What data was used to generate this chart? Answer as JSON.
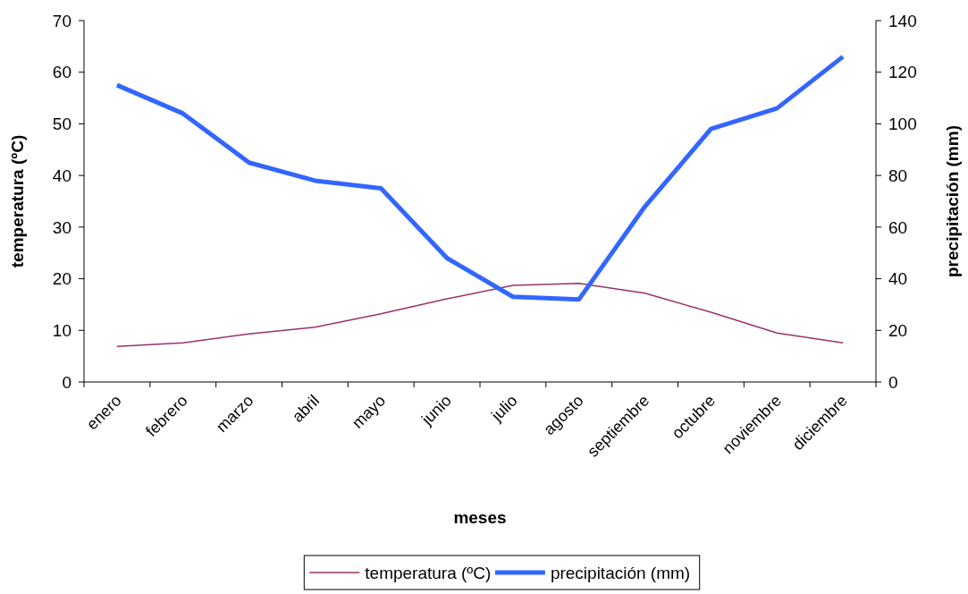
{
  "chart_data": {
    "type": "line",
    "xlabel": "meses",
    "ylabel": "temperatura (ºC)",
    "y2label": "precipitación (mm)",
    "categories": [
      "enero",
      "febrero",
      "marzo",
      "abril",
      "mayo",
      "junio",
      "julio",
      "agosto",
      "septiembre",
      "octubre",
      "noviembre",
      "diciembre"
    ],
    "series": [
      {
        "name": "temperatura (ºC)",
        "color": "#993366",
        "values": [
          6.9,
          7.6,
          9.3,
          10.6,
          13.2,
          16.1,
          18.7,
          19.1,
          17.2,
          13.5,
          9.5,
          7.6
        ]
      },
      {
        "name": "precipitación (mm)",
        "color": "#3366ff",
        "axis": "y2",
        "values": [
          115,
          104,
          85,
          78,
          75,
          48,
          33,
          32,
          68,
          98,
          106,
          126
        ]
      }
    ],
    "ylim": [
      0,
      70
    ],
    "yticks": [
      0,
      10,
      20,
      30,
      40,
      50,
      60,
      70
    ],
    "y2lim": [
      0,
      140
    ],
    "y2ticks": [
      0,
      20,
      40,
      60,
      80,
      100,
      120,
      140
    ],
    "legend": "bottom",
    "grid": false,
    "marker": "none"
  }
}
